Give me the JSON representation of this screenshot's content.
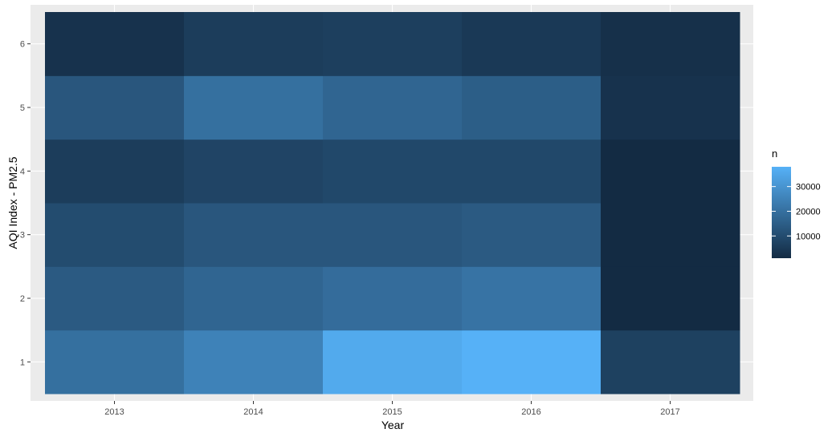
{
  "chart_data": {
    "type": "heatmap",
    "title": "",
    "xlabel": "Year",
    "ylabel": "AQI Index - PM2.5",
    "x_categories": [
      "2013",
      "2014",
      "2015",
      "2016",
      "2017"
    ],
    "y_categories": [
      "1",
      "2",
      "3",
      "4",
      "5",
      "6"
    ],
    "values": [
      [
        20000,
        25000,
        36000,
        38000,
        7000
      ],
      [
        14000,
        17000,
        19000,
        21000,
        1000
      ],
      [
        10000,
        13000,
        13000,
        14000,
        1000
      ],
      [
        6000,
        8000,
        9000,
        9000,
        1000
      ],
      [
        13000,
        20000,
        17000,
        15000,
        3000
      ],
      [
        3000,
        6000,
        6500,
        5000,
        2500
      ]
    ],
    "legend": {
      "title": "n",
      "ticks": [
        10000,
        20000,
        30000
      ],
      "tick_labels": [
        "10000",
        "20000",
        "30000"
      ],
      "range": [
        1000,
        38000
      ],
      "color_low": "#132b43",
      "color_high": "#56b1f7",
      "position": "right"
    },
    "panel_background": "#ebebeb",
    "grid_color": "#ffffff",
    "grid": true
  }
}
